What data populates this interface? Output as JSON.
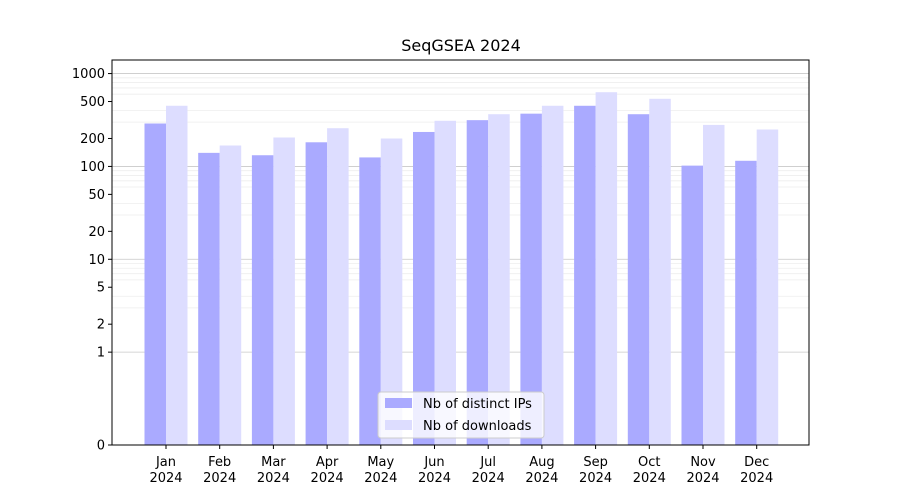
{
  "chart_data": {
    "type": "bar",
    "title": "SeqGSEA 2024",
    "xlabel": "",
    "ylabel": "",
    "yscale": "symlog",
    "ylim": [
      0,
      1400
    ],
    "yticks": [
      0,
      1,
      2,
      5,
      10,
      20,
      50,
      100,
      200,
      500,
      1000
    ],
    "categories": [
      [
        "Jan",
        "2024"
      ],
      [
        "Feb",
        "2024"
      ],
      [
        "Mar",
        "2024"
      ],
      [
        "Apr",
        "2024"
      ],
      [
        "May",
        "2024"
      ],
      [
        "Jun",
        "2024"
      ],
      [
        "Jul",
        "2024"
      ],
      [
        "Aug",
        "2024"
      ],
      [
        "Sep",
        "2024"
      ],
      [
        "Oct",
        "2024"
      ],
      [
        "Nov",
        "2024"
      ],
      [
        "Dec",
        "2024"
      ]
    ],
    "series": [
      {
        "name": "Nb of distinct IPs",
        "color": "#aaaaff",
        "values": [
          290,
          140,
          132,
          182,
          125,
          235,
          315,
          370,
          450,
          365,
          102,
          115
        ]
      },
      {
        "name": "Nb of downloads",
        "color": "#ddddff",
        "values": [
          450,
          168,
          205,
          258,
          200,
          310,
          365,
          450,
          630,
          535,
          280,
          250
        ]
      }
    ],
    "grid": true,
    "legend_position": "bottom-center"
  }
}
